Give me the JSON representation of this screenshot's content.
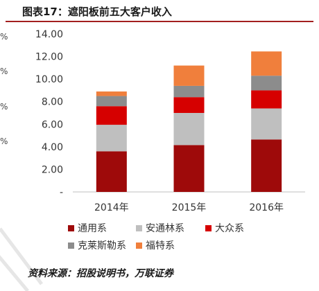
{
  "header": {
    "title": "图表17：遮阳板前五大客户收入"
  },
  "side_labels": [
    "%",
    "%",
    "%",
    "%"
  ],
  "source": "资料来源：招股说明书，万联证券",
  "chart_data": {
    "type": "bar",
    "stacked": true,
    "title": "",
    "xlabel": "",
    "ylabel": "",
    "categories": [
      "2014年",
      "2015年",
      "2016年"
    ],
    "ylim": [
      0,
      14
    ],
    "yticks": [
      "-",
      "2.00",
      "4.00",
      "6.00",
      "8.00",
      "10.00",
      "12.00",
      "14.00"
    ],
    "ytick_values": [
      0,
      2,
      4,
      6,
      8,
      10,
      12,
      14
    ],
    "grid": false,
    "legend_position": "bottom",
    "series": [
      {
        "name": "通用系",
        "color": "#9e0a0a",
        "values": [
          3.6,
          4.15,
          4.65
        ]
      },
      {
        "name": "安通林系",
        "color": "#bfbfbf",
        "values": [
          2.35,
          2.85,
          2.75
        ]
      },
      {
        "name": "大众系",
        "color": "#d60000",
        "values": [
          1.65,
          1.4,
          1.6
        ]
      },
      {
        "name": "克莱斯勒系",
        "color": "#8c8c8c",
        "values": [
          0.9,
          1.0,
          1.3
        ]
      },
      {
        "name": "福特系",
        "color": "#f07f3c",
        "values": [
          0.4,
          1.8,
          2.15
        ]
      }
    ]
  }
}
